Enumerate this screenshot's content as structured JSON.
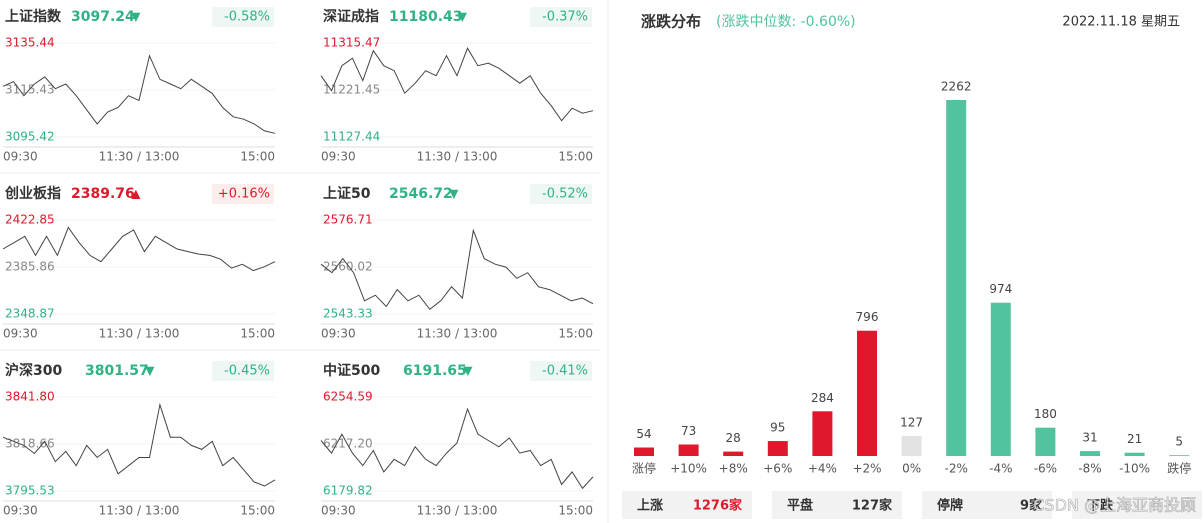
{
  "indices": [
    {
      "name": "上证指数",
      "price": "3097.24",
      "arrow": "▼",
      "change": "-0.58%",
      "dir": "down",
      "ylim": [
        3095.42,
        3135.44
      ],
      "yticks": [
        3095.42,
        3115.43,
        3135.44
      ],
      "values": [
        3117,
        3119,
        3113,
        3118,
        3121,
        3116,
        3118,
        3113,
        3107,
        3101,
        3106,
        3108,
        3113,
        3111,
        3130,
        3120,
        3118,
        3116,
        3120,
        3117,
        3114,
        3108,
        3104,
        3103,
        3101,
        3098,
        3097
      ]
    },
    {
      "name": "深证成指",
      "price": "11180.43",
      "arrow": "▼",
      "change": "-0.37%",
      "dir": "down",
      "ylim": [
        11127.44,
        11315.47
      ],
      "yticks": [
        11127.44,
        11221.45,
        11315.47
      ],
      "values": [
        11250,
        11220,
        11270,
        11285,
        11240,
        11300,
        11270,
        11260,
        11215,
        11235,
        11260,
        11250,
        11290,
        11250,
        11305,
        11270,
        11275,
        11265,
        11250,
        11235,
        11250,
        11215,
        11190,
        11160,
        11185,
        11175,
        11180
      ]
    },
    {
      "name": "创业板指",
      "price": "2389.76",
      "arrow": "▲",
      "change": "+0.16%",
      "dir": "up",
      "ylim": [
        2348.87,
        2422.85
      ],
      "yticks": [
        2348.87,
        2385.86,
        2422.85
      ],
      "values": [
        2400,
        2405,
        2410,
        2395,
        2410,
        2395,
        2417,
        2405,
        2395,
        2390,
        2400,
        2410,
        2415,
        2398,
        2410,
        2405,
        2400,
        2398,
        2396,
        2395,
        2392,
        2385,
        2388,
        2383,
        2386,
        2390
      ]
    },
    {
      "name": "上证50",
      "price": "2546.72",
      "arrow": "▼",
      "change": "-0.52%",
      "dir": "down",
      "ylim": [
        2543.33,
        2576.71
      ],
      "yticks": [
        2543.33,
        2560.02,
        2576.71
      ],
      "values": [
        2561,
        2558,
        2563,
        2558,
        2548,
        2550,
        2546,
        2552,
        2548,
        2550,
        2545,
        2548,
        2553,
        2549,
        2573,
        2563,
        2561,
        2560,
        2556,
        2558,
        2553,
        2552,
        2550,
        2548,
        2549,
        2547
      ]
    },
    {
      "name": "沪深300",
      "price": "3801.57",
      "arrow": "▼",
      "change": "-0.45%",
      "dir": "down",
      "ylim": [
        3795.53,
        3841.8
      ],
      "yticks": [
        3795.53,
        3818.66,
        {
          "value": 3841.8,
          "label": "3841.80"
        }
      ],
      "values": [
        3822,
        3820,
        3818,
        3814,
        3820,
        3810,
        3815,
        3808,
        3818,
        3812,
        3816,
        3804,
        3808,
        3812,
        3812,
        3838,
        3822,
        3822,
        3818,
        3816,
        3820,
        3808,
        3812,
        3806,
        3800,
        3798,
        3801
      ]
    },
    {
      "name": "中证500",
      "price": "6191.65",
      "arrow": "▼",
      "change": "-0.41%",
      "dir": "down",
      "ylim": [
        6179.82,
        6254.59
      ],
      "yticks": [
        6179.82,
        {
          "value": 6217.2,
          "label": "6217.20"
        },
        6254.59
      ],
      "values": [
        6220,
        6210,
        6225,
        6210,
        6200,
        6212,
        6195,
        6205,
        6200,
        6215,
        6205,
        6200,
        6210,
        6218,
        6245,
        6225,
        6220,
        6215,
        6222,
        6210,
        6212,
        6200,
        6205,
        6185,
        6195,
        6182,
        6191
      ]
    }
  ],
  "times": [
    "09:30",
    "11:30 / 13:00",
    "15:00"
  ],
  "up_color": "#e0182b",
  "down_color": "#2fb383",
  "chart_data": {
    "type": "bar",
    "title": "涨跌分布",
    "subtitle": "(涨跌中位数: -0.60%)",
    "date": "2022.11.18 星期五",
    "categories": [
      "涨停",
      "+10%",
      "+8%",
      "+6%",
      "+4%",
      "+2%",
      "0%",
      "-2%",
      "-4%",
      "-6%",
      "-8%",
      "-10%",
      "跌停"
    ],
    "values": [
      54,
      73,
      28,
      95,
      284,
      796,
      127,
      2262,
      974,
      180,
      31,
      21,
      5
    ],
    "colors": [
      "#e0182b",
      "#e0182b",
      "#e0182b",
      "#e0182b",
      "#e0182b",
      "#e0182b",
      "#e3e3e3",
      "#52c29f",
      "#52c29f",
      "#52c29f",
      "#52c29f",
      "#52c29f",
      "#52c29f"
    ]
  },
  "summary": [
    {
      "label": "上涨",
      "value": "1276家"
    },
    {
      "label": "平盘",
      "value": "127家"
    },
    {
      "label": "停牌",
      "value": "9家"
    },
    {
      "label": "下跌"
    }
  ],
  "watermark": "CSDN @上海亚商投顾"
}
